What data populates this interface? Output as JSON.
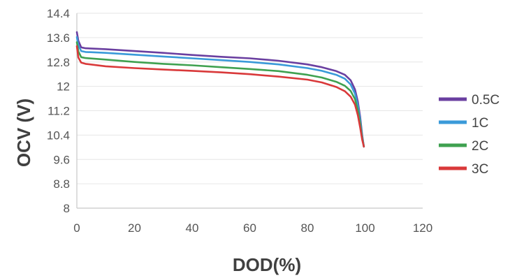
{
  "chart_data": {
    "type": "line",
    "title": "",
    "xlabel": "DOD(%)",
    "ylabel": "OCV (V)",
    "xlim": [
      0,
      120
    ],
    "ylim": [
      8,
      14.4
    ],
    "x_ticks": [
      "0",
      "20",
      "40",
      "60",
      "80",
      "100",
      "120"
    ],
    "y_ticks": [
      "8",
      "8.8",
      "9.6",
      "10.4",
      "11.2",
      "12",
      "12.8",
      "13.6",
      "14.4"
    ],
    "grid": true,
    "legend_position": "right",
    "series": [
      {
        "name": "0.5C",
        "color": "#6a3fa0",
        "points": [
          [
            0,
            13.78
          ],
          [
            0.5,
            13.5
          ],
          [
            1.5,
            13.28
          ],
          [
            3,
            13.25
          ],
          [
            10,
            13.22
          ],
          [
            20,
            13.16
          ],
          [
            30,
            13.1
          ],
          [
            40,
            13.03
          ],
          [
            50,
            12.97
          ],
          [
            60,
            12.92
          ],
          [
            70,
            12.84
          ],
          [
            80,
            12.72
          ],
          [
            85,
            12.63
          ],
          [
            90,
            12.5
          ],
          [
            93,
            12.38
          ],
          [
            95,
            12.2
          ],
          [
            96.5,
            11.9
          ],
          [
            97.5,
            11.5
          ],
          [
            98.3,
            11.0
          ],
          [
            99,
            10.4
          ],
          [
            99.6,
            10.02
          ]
        ]
      },
      {
        "name": "1C",
        "color": "#3a9ad9",
        "points": [
          [
            0,
            13.62
          ],
          [
            0.5,
            13.35
          ],
          [
            1.5,
            13.16
          ],
          [
            3,
            13.13
          ],
          [
            10,
            13.1
          ],
          [
            20,
            13.04
          ],
          [
            30,
            12.98
          ],
          [
            40,
            12.92
          ],
          [
            50,
            12.86
          ],
          [
            60,
            12.8
          ],
          [
            70,
            12.72
          ],
          [
            80,
            12.6
          ],
          [
            85,
            12.51
          ],
          [
            90,
            12.38
          ],
          [
            93,
            12.25
          ],
          [
            95,
            12.06
          ],
          [
            96.5,
            11.76
          ],
          [
            97.5,
            11.38
          ],
          [
            98.3,
            10.9
          ],
          [
            99,
            10.35
          ],
          [
            99.6,
            10.02
          ]
        ]
      },
      {
        "name": "2C",
        "color": "#3fa150",
        "points": [
          [
            0,
            13.45
          ],
          [
            0.5,
            13.15
          ],
          [
            1.5,
            12.96
          ],
          [
            3,
            12.93
          ],
          [
            10,
            12.88
          ],
          [
            20,
            12.8
          ],
          [
            30,
            12.74
          ],
          [
            40,
            12.69
          ],
          [
            50,
            12.63
          ],
          [
            60,
            12.57
          ],
          [
            70,
            12.5
          ],
          [
            80,
            12.38
          ],
          [
            85,
            12.29
          ],
          [
            90,
            12.15
          ],
          [
            93,
            12.02
          ],
          [
            95,
            11.85
          ],
          [
            96.5,
            11.58
          ],
          [
            97.5,
            11.22
          ],
          [
            98.3,
            10.78
          ],
          [
            99,
            10.3
          ],
          [
            99.6,
            10.02
          ]
        ]
      },
      {
        "name": "3C",
        "color": "#d9393a",
        "points": [
          [
            0,
            13.32
          ],
          [
            0.5,
            12.95
          ],
          [
            1.5,
            12.78
          ],
          [
            3,
            12.74
          ],
          [
            10,
            12.66
          ],
          [
            20,
            12.6
          ],
          [
            30,
            12.55
          ],
          [
            40,
            12.51
          ],
          [
            50,
            12.46
          ],
          [
            60,
            12.4
          ],
          [
            70,
            12.32
          ],
          [
            80,
            12.22
          ],
          [
            85,
            12.13
          ],
          [
            90,
            11.98
          ],
          [
            93,
            11.84
          ],
          [
            95,
            11.66
          ],
          [
            96.5,
            11.4
          ],
          [
            97.5,
            11.05
          ],
          [
            98.3,
            10.65
          ],
          [
            99,
            10.25
          ],
          [
            99.6,
            10.02
          ]
        ]
      }
    ]
  }
}
